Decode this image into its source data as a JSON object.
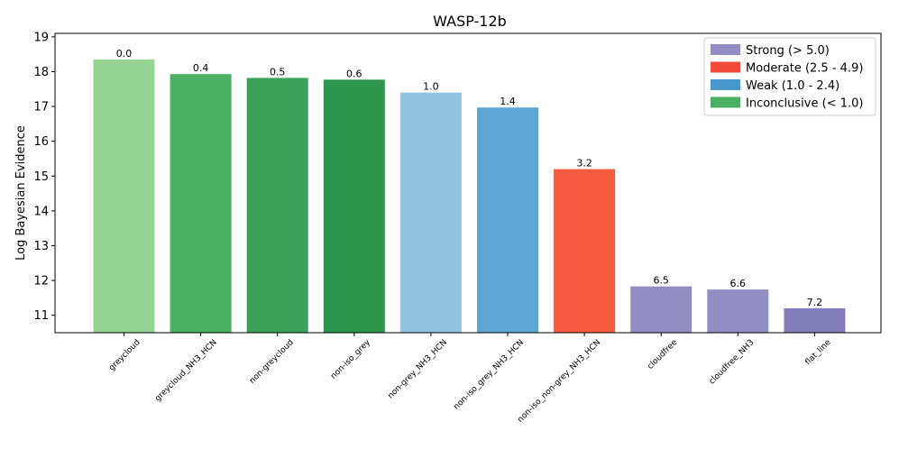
{
  "chart_data": {
    "type": "bar",
    "title": "WASP-12b",
    "xlabel": "",
    "ylabel": "Log Bayesian Evidence",
    "ylim": [
      10.5,
      19.1
    ],
    "yticks": [
      "11",
      "12",
      "13",
      "14",
      "15",
      "16",
      "17",
      "18",
      "19"
    ],
    "grid": false,
    "legend_position": "top-right",
    "categories": [
      "greycloud",
      "greycloud_NH3_HCN",
      "non-greycloud",
      "non-iso_grey",
      "non-grey_NH3_HCN",
      "non-iso_grey_NH3_HCN",
      "non-iso_non-grey_NH3_HCN",
      "cloudfree",
      "cloudfree_NH3",
      "flat_line"
    ],
    "values": [
      18.35,
      17.93,
      17.82,
      17.77,
      17.4,
      16.97,
      15.2,
      11.83,
      11.74,
      11.2
    ],
    "data_labels": [
      "0.0",
      "0.4",
      "0.5",
      "0.6",
      "1.0",
      "1.4",
      "3.2",
      "6.5",
      "6.6",
      "7.2"
    ],
    "bar_colors": [
      "#98d594",
      "#4bb062",
      "#3ca25a",
      "#2d964d",
      "#94c4df",
      "#5ea7d4",
      "#f55b40",
      "#928ec4",
      "#928ec4",
      "#807dba"
    ],
    "legend": [
      {
        "label": "Strong (> 5.0)",
        "color": "#928ec4"
      },
      {
        "label": "Moderate (2.5 - 4.9)",
        "color": "#f24a38"
      },
      {
        "label": "Weak (1.0 - 2.4)",
        "color": "#4a97cb"
      },
      {
        "label": "Inconclusive (< 1.0)",
        "color": "#4bb062"
      }
    ]
  }
}
